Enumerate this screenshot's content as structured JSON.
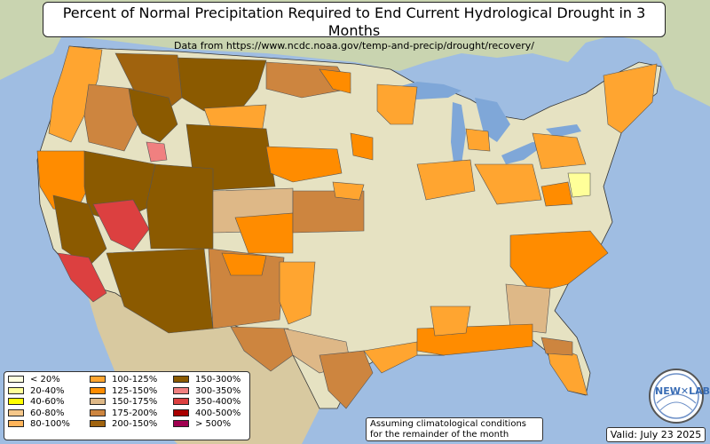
{
  "title": "Percent of Normal Precipitation Required to End Current Hydrological Drought in 3 Months",
  "subtitle": "Data from https://www.ncdc.noaa.gov/temp-and-precip/drought/recovery/",
  "legend": [
    {
      "label": "< 20%",
      "color": "#ffffe0"
    },
    {
      "label": "20-40%",
      "color": "#ffff99"
    },
    {
      "label": "40-60%",
      "color": "#ffff00"
    },
    {
      "label": "60-80%",
      "color": "#f5c78a"
    },
    {
      "label": "80-100%",
      "color": "#ffb45a"
    },
    {
      "label": "100-125%",
      "color": "#ffa530"
    },
    {
      "label": "125-150%",
      "color": "#ff8c00"
    },
    {
      "label": "150-175%",
      "color": "#deb887"
    },
    {
      "label": "175-200%",
      "color": "#cd853f"
    },
    {
      "label": "200-150%",
      "color": "#a0630e"
    },
    {
      "label": "150-300%",
      "color": "#8b5a00"
    },
    {
      "label": "300-350%",
      "color": "#f08080"
    },
    {
      "label": "350-400%",
      "color": "#dc4040"
    },
    {
      "label": "400-500%",
      "color": "#aa0000"
    },
    {
      "label": "> 500%",
      "color": "#a00050"
    }
  ],
  "note": "Assuming climatological conditions for the remainder of the month",
  "note_line1": "Assuming climatological conditions",
  "note_line2": "for the remainder of the month",
  "valid": "Valid: July 23 2025",
  "logo_text": "NEWXLAB",
  "colors": {
    "ocean": "#9fbde2",
    "land_us": "#e8e4c4",
    "land_other": "#cfd9b8",
    "lakes": "#7fa7d8"
  }
}
